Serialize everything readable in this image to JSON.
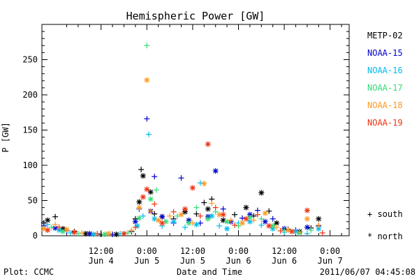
{
  "chart_data": {
    "type": "scatter",
    "title": "Hemispheric Power [GW]",
    "ylabel": "P [GW]",
    "xlabel": "Date and Time",
    "ylim": [
      0,
      300
    ],
    "y_ticks": [
      0,
      50,
      100,
      150,
      200,
      250
    ],
    "x_unit": "hours since 2011-06-04 00:00 UT",
    "xlim": [
      -3.5,
      77
    ],
    "x_ticks": [
      {
        "x": 12,
        "time": "12:00",
        "date": "Jun 4"
      },
      {
        "x": 24,
        "time": "0:00",
        "date": "Jun 5"
      },
      {
        "x": 36,
        "time": "12:00",
        "date": "Jun 5"
      },
      {
        "x": 48,
        "time": "0:00",
        "date": "Jun 6"
      },
      {
        "x": 60,
        "time": "12:00",
        "date": "Jun 6"
      },
      {
        "x": 72,
        "time": "0:00",
        "date": "Jun 7"
      }
    ],
    "legend_position": "right",
    "marker_legend": {
      "south": "+ south",
      "north": "* north"
    },
    "series": [
      {
        "name": "METP-02",
        "color": "#000000",
        "points": [
          {
            "x": -3,
            "y": 18,
            "h": "S"
          },
          {
            "x": -2,
            "y": 22,
            "h": "N"
          },
          {
            "x": 0,
            "y": 27,
            "h": "S"
          },
          {
            "x": 2,
            "y": 10,
            "h": "N"
          },
          {
            "x": 5,
            "y": 6,
            "h": "S"
          },
          {
            "x": 8,
            "y": 3,
            "h": "N"
          },
          {
            "x": 12,
            "y": 2,
            "h": "S"
          },
          {
            "x": 16,
            "y": 2,
            "h": "N"
          },
          {
            "x": 20,
            "y": 6,
            "h": "S"
          },
          {
            "x": 21,
            "y": 24,
            "h": "S"
          },
          {
            "x": 22,
            "y": 48,
            "h": "N"
          },
          {
            "x": 22.5,
            "y": 94,
            "h": "S"
          },
          {
            "x": 23,
            "y": 85,
            "h": "N"
          },
          {
            "x": 25,
            "y": 62,
            "h": "N"
          },
          {
            "x": 26,
            "y": 31,
            "h": "S"
          },
          {
            "x": 28,
            "y": 27,
            "h": "N"
          },
          {
            "x": 31,
            "y": 24,
            "h": "S"
          },
          {
            "x": 34,
            "y": 34,
            "h": "N"
          },
          {
            "x": 37,
            "y": 31,
            "h": "S"
          },
          {
            "x": 39,
            "y": 47,
            "h": "S"
          },
          {
            "x": 40,
            "y": 38,
            "h": "N"
          },
          {
            "x": 41,
            "y": 52,
            "h": "S"
          },
          {
            "x": 44,
            "y": 22,
            "h": "N"
          },
          {
            "x": 47,
            "y": 30,
            "h": "S"
          },
          {
            "x": 50,
            "y": 40,
            "h": "N"
          },
          {
            "x": 52,
            "y": 28,
            "h": "S"
          },
          {
            "x": 54,
            "y": 61,
            "h": "N"
          },
          {
            "x": 56,
            "y": 35,
            "h": "S"
          },
          {
            "x": 58,
            "y": 18,
            "h": "N"
          },
          {
            "x": 61,
            "y": 9,
            "h": "S"
          },
          {
            "x": 64,
            "y": 6,
            "h": "N"
          },
          {
            "x": 67,
            "y": 11,
            "h": "S"
          },
          {
            "x": 69,
            "y": 24,
            "h": "N"
          }
        ]
      },
      {
        "name": "NOAA-15",
        "color": "#0000cc",
        "points": [
          {
            "x": -3,
            "y": 14,
            "h": "S"
          },
          {
            "x": 0,
            "y": 11,
            "h": "N"
          },
          {
            "x": 3,
            "y": 7,
            "h": "S"
          },
          {
            "x": 9,
            "y": 3,
            "h": "N"
          },
          {
            "x": 15,
            "y": 2,
            "h": "S"
          },
          {
            "x": 21,
            "y": 20,
            "h": "N"
          },
          {
            "x": 22,
            "y": 38,
            "h": "S"
          },
          {
            "x": 24,
            "y": 166,
            "h": "S"
          },
          {
            "x": 25,
            "y": 35,
            "h": "N"
          },
          {
            "x": 26,
            "y": 84,
            "h": "S"
          },
          {
            "x": 28,
            "y": 27,
            "h": "N"
          },
          {
            "x": 31,
            "y": 18,
            "h": "S"
          },
          {
            "x": 33,
            "y": 82,
            "h": "S"
          },
          {
            "x": 35,
            "y": 22,
            "h": "N"
          },
          {
            "x": 38,
            "y": 18,
            "h": "S"
          },
          {
            "x": 40,
            "y": 27,
            "h": "N"
          },
          {
            "x": 42,
            "y": 92,
            "h": "N"
          },
          {
            "x": 44,
            "y": 38,
            "h": "S"
          },
          {
            "x": 46,
            "y": 20,
            "h": "N"
          },
          {
            "x": 49,
            "y": 25,
            "h": "S"
          },
          {
            "x": 51,
            "y": 30,
            "h": "N"
          },
          {
            "x": 53,
            "y": 36,
            "h": "S"
          },
          {
            "x": 55,
            "y": 20,
            "h": "N"
          },
          {
            "x": 57,
            "y": 24,
            "h": "S"
          },
          {
            "x": 60,
            "y": 10,
            "h": "N"
          },
          {
            "x": 63,
            "y": 8,
            "h": "S"
          },
          {
            "x": 66,
            "y": 12,
            "h": "N"
          },
          {
            "x": 69,
            "y": 14,
            "h": "S"
          }
        ]
      },
      {
        "name": "NOAA-16",
        "color": "#00bbee",
        "points": [
          {
            "x": -2,
            "y": 16,
            "h": "S"
          },
          {
            "x": 1,
            "y": 8,
            "h": "N"
          },
          {
            "x": 4,
            "y": 4,
            "h": "S"
          },
          {
            "x": 10,
            "y": 2,
            "h": "N"
          },
          {
            "x": 17,
            "y": 3,
            "h": "S"
          },
          {
            "x": 21.5,
            "y": 14,
            "h": "N"
          },
          {
            "x": 23,
            "y": 28,
            "h": "S"
          },
          {
            "x": 24.5,
            "y": 144,
            "h": "S"
          },
          {
            "x": 26,
            "y": 24,
            "h": "N"
          },
          {
            "x": 28,
            "y": 14,
            "h": "S"
          },
          {
            "x": 31,
            "y": 20,
            "h": "N"
          },
          {
            "x": 34,
            "y": 12,
            "h": "S"
          },
          {
            "x": 37,
            "y": 16,
            "h": "N"
          },
          {
            "x": 38,
            "y": 75,
            "h": "S"
          },
          {
            "x": 41,
            "y": 28,
            "h": "N"
          },
          {
            "x": 43,
            "y": 14,
            "h": "S"
          },
          {
            "x": 45,
            "y": 10,
            "h": "N"
          },
          {
            "x": 48,
            "y": 18,
            "h": "S"
          },
          {
            "x": 51,
            "y": 20,
            "h": "N"
          },
          {
            "x": 54,
            "y": 15,
            "h": "S"
          },
          {
            "x": 57,
            "y": 10,
            "h": "N"
          },
          {
            "x": 60,
            "y": 5,
            "h": "S"
          },
          {
            "x": 63,
            "y": 6,
            "h": "N"
          },
          {
            "x": 66,
            "y": 3,
            "h": "S"
          },
          {
            "x": 69,
            "y": 10,
            "h": "N"
          }
        ]
      },
      {
        "name": "NOAA-17",
        "color": "#33dd77",
        "points": [
          {
            "x": -1,
            "y": 12,
            "h": "S"
          },
          {
            "x": 2,
            "y": 6,
            "h": "N"
          },
          {
            "x": 6,
            "y": 3,
            "h": "S"
          },
          {
            "x": 13,
            "y": 2,
            "h": "N"
          },
          {
            "x": 19,
            "y": 4,
            "h": "S"
          },
          {
            "x": 22,
            "y": 25,
            "h": "N"
          },
          {
            "x": 24,
            "y": 270,
            "h": "S"
          },
          {
            "x": 25,
            "y": 52,
            "h": "N"
          },
          {
            "x": 26.5,
            "y": 65,
            "h": "S"
          },
          {
            "x": 29,
            "y": 20,
            "h": "N"
          },
          {
            "x": 32,
            "y": 28,
            "h": "S"
          },
          {
            "x": 35,
            "y": 18,
            "h": "N"
          },
          {
            "x": 37,
            "y": 40,
            "h": "S"
          },
          {
            "x": 40,
            "y": 24,
            "h": "N"
          },
          {
            "x": 42,
            "y": 34,
            "h": "S"
          },
          {
            "x": 45,
            "y": 20,
            "h": "N"
          },
          {
            "x": 48,
            "y": 14,
            "h": "S"
          },
          {
            "x": 51,
            "y": 26,
            "h": "N"
          },
          {
            "x": 54,
            "y": 24,
            "h": "S"
          },
          {
            "x": 57,
            "y": 14,
            "h": "N"
          },
          {
            "x": 60,
            "y": 8,
            "h": "S"
          },
          {
            "x": 64,
            "y": 4,
            "h": "N"
          },
          {
            "x": 67,
            "y": 8,
            "h": "S"
          }
        ]
      },
      {
        "name": "NOAA-18",
        "color": "#ff9922",
        "points": [
          {
            "x": -3,
            "y": 10,
            "h": "N"
          },
          {
            "x": 0,
            "y": 16,
            "h": "S"
          },
          {
            "x": 3,
            "y": 9,
            "h": "N"
          },
          {
            "x": 7,
            "y": 4,
            "h": "S"
          },
          {
            "x": 14,
            "y": 3,
            "h": "N"
          },
          {
            "x": 20,
            "y": 8,
            "h": "S"
          },
          {
            "x": 22,
            "y": 40,
            "h": "N"
          },
          {
            "x": 24,
            "y": 221,
            "h": "N"
          },
          {
            "x": 25,
            "y": 35,
            "h": "S"
          },
          {
            "x": 27,
            "y": 22,
            "h": "N"
          },
          {
            "x": 30,
            "y": 28,
            "h": "S"
          },
          {
            "x": 33,
            "y": 30,
            "h": "N"
          },
          {
            "x": 36,
            "y": 18,
            "h": "S"
          },
          {
            "x": 39,
            "y": 74,
            "h": "N"
          },
          {
            "x": 41,
            "y": 46,
            "h": "S"
          },
          {
            "x": 43,
            "y": 30,
            "h": "N"
          },
          {
            "x": 46,
            "y": 22,
            "h": "S"
          },
          {
            "x": 49,
            "y": 18,
            "h": "N"
          },
          {
            "x": 52,
            "y": 22,
            "h": "S"
          },
          {
            "x": 55,
            "y": 32,
            "h": "N"
          },
          {
            "x": 58,
            "y": 12,
            "h": "S"
          },
          {
            "x": 61,
            "y": 8,
            "h": "N"
          },
          {
            "x": 64,
            "y": 5,
            "h": "S"
          },
          {
            "x": 66,
            "y": 24,
            "h": "N"
          },
          {
            "x": 69,
            "y": 15,
            "h": "S"
          }
        ]
      },
      {
        "name": "NOAA-19",
        "color": "#ee3311",
        "points": [
          {
            "x": -2,
            "y": 8,
            "h": "N"
          },
          {
            "x": 1,
            "y": 12,
            "h": "S"
          },
          {
            "x": 5,
            "y": 5,
            "h": "N"
          },
          {
            "x": 11,
            "y": 3,
            "h": "S"
          },
          {
            "x": 18,
            "y": 3,
            "h": "N"
          },
          {
            "x": 21,
            "y": 12,
            "h": "S"
          },
          {
            "x": 23,
            "y": 55,
            "h": "N"
          },
          {
            "x": 24,
            "y": 66,
            "h": "N"
          },
          {
            "x": 26,
            "y": 45,
            "h": "S"
          },
          {
            "x": 28,
            "y": 18,
            "h": "N"
          },
          {
            "x": 31,
            "y": 34,
            "h": "S"
          },
          {
            "x": 34,
            "y": 38,
            "h": "N"
          },
          {
            "x": 36,
            "y": 68,
            "h": "N"
          },
          {
            "x": 38,
            "y": 28,
            "h": "S"
          },
          {
            "x": 40,
            "y": 130,
            "h": "N"
          },
          {
            "x": 42,
            "y": 40,
            "h": "S"
          },
          {
            "x": 44,
            "y": 30,
            "h": "N"
          },
          {
            "x": 47,
            "y": 15,
            "h": "S"
          },
          {
            "x": 50,
            "y": 24,
            "h": "N"
          },
          {
            "x": 53,
            "y": 30,
            "h": "S"
          },
          {
            "x": 56,
            "y": 14,
            "h": "N"
          },
          {
            "x": 59,
            "y": 7,
            "h": "S"
          },
          {
            "x": 62,
            "y": 6,
            "h": "N"
          },
          {
            "x": 66,
            "y": 36,
            "h": "N"
          },
          {
            "x": 70,
            "y": 4,
            "h": "S"
          }
        ]
      }
    ]
  },
  "footer": {
    "left": "Plot: CCMC",
    "right": "2011/06/07 04:45:08"
  }
}
